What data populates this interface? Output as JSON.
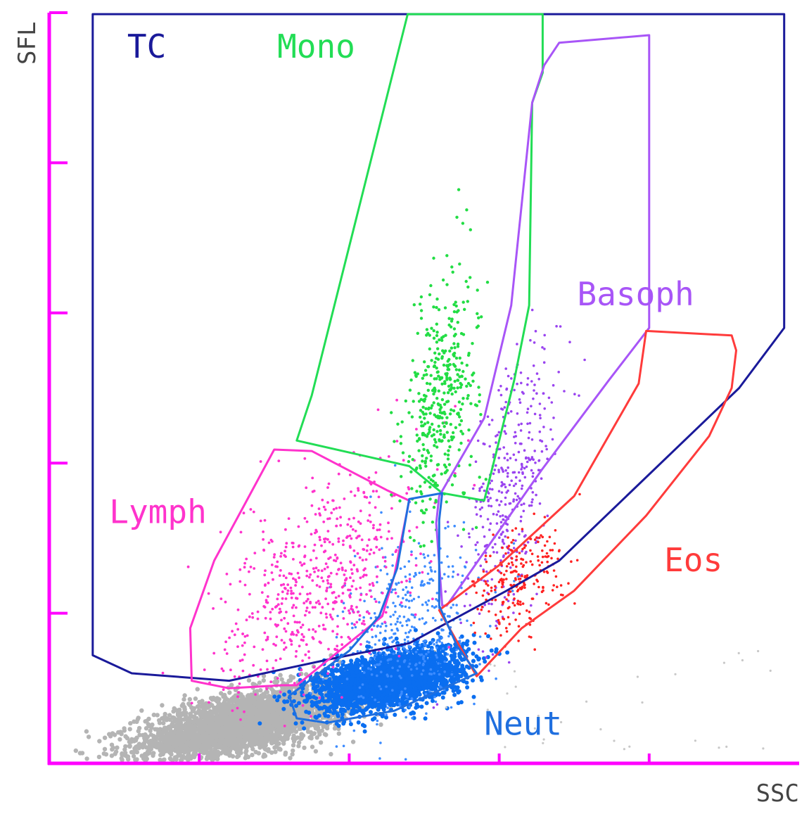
{
  "chart_data": {
    "type": "scatter",
    "xlabel": "SSC",
    "ylabel": "SFL",
    "xlim": [
      0,
      5
    ],
    "ylim": [
      0,
      5
    ],
    "x_ticks": [
      1,
      2,
      3,
      4
    ],
    "y_ticks": [
      1,
      2,
      3,
      4,
      5
    ],
    "axis_color": "#ff00ff",
    "grid": false,
    "gates": [
      {
        "name": "TC",
        "color": "#1a1a9a",
        "label_pos": [
          0.52,
          4.7
        ],
        "polygon": [
          [
            0.29,
            4.99
          ],
          [
            4.9,
            4.99
          ],
          [
            4.9,
            2.9
          ],
          [
            4.6,
            2.5
          ],
          [
            3.4,
            1.35
          ],
          [
            3.05,
            1.15
          ],
          [
            2.4,
            0.8
          ],
          [
            1.9,
            0.7
          ],
          [
            1.2,
            0.55
          ],
          [
            0.55,
            0.6
          ],
          [
            0.29,
            0.72
          ]
        ]
      },
      {
        "name": "Mono",
        "color": "#22dd55",
        "label_pos": [
          1.52,
          4.7
        ],
        "polygon": [
          [
            2.39,
            4.99
          ],
          [
            3.29,
            4.99
          ],
          [
            3.29,
            4.6
          ],
          [
            3.22,
            4.4
          ],
          [
            3.2,
            3.05
          ],
          [
            3.1,
            2.55
          ],
          [
            2.9,
            1.75
          ],
          [
            2.62,
            1.8
          ],
          [
            2.4,
            1.98
          ],
          [
            1.65,
            2.15
          ],
          [
            1.75,
            2.45
          ]
        ]
      },
      {
        "name": "Basoph",
        "color": "#a855f7",
        "label_pos": [
          3.52,
          3.05
        ],
        "polygon": [
          [
            3.4,
            4.8
          ],
          [
            4.0,
            4.85
          ],
          [
            4.0,
            2.9
          ],
          [
            3.73,
            2.55
          ],
          [
            3.28,
            1.95
          ],
          [
            2.65,
            1.05
          ],
          [
            2.62,
            1.05
          ],
          [
            2.58,
            1.6
          ],
          [
            2.6,
            1.78
          ],
          [
            2.9,
            2.3
          ],
          [
            3.08,
            3.05
          ],
          [
            3.22,
            4.4
          ],
          [
            3.3,
            4.65
          ]
        ]
      },
      {
        "name": "Eos",
        "color": "#ff3b3b",
        "label_pos": [
          4.1,
          1.28
        ],
        "polygon": [
          [
            3.98,
            2.88
          ],
          [
            4.55,
            2.85
          ],
          [
            4.58,
            2.75
          ],
          [
            4.55,
            2.5
          ],
          [
            4.4,
            2.18
          ],
          [
            3.98,
            1.65
          ],
          [
            3.5,
            1.15
          ],
          [
            3.15,
            0.9
          ],
          [
            2.85,
            0.58
          ],
          [
            2.6,
            1.02
          ],
          [
            3.0,
            1.32
          ],
          [
            3.5,
            1.78
          ],
          [
            3.93,
            2.53
          ]
        ]
      },
      {
        "name": "Lymph",
        "color": "#ff33cc",
        "label_pos": [
          0.4,
          1.6
        ],
        "polygon": [
          [
            1.5,
            2.09
          ],
          [
            1.75,
            2.08
          ],
          [
            2.25,
            1.82
          ],
          [
            2.4,
            1.75
          ],
          [
            2.3,
            1.25
          ],
          [
            2.22,
            0.98
          ],
          [
            1.65,
            0.52
          ],
          [
            1.55,
            0.52
          ],
          [
            1.2,
            0.5
          ],
          [
            0.95,
            0.55
          ],
          [
            0.94,
            0.9
          ],
          [
            1.1,
            1.35
          ],
          [
            1.3,
            1.72
          ]
        ]
      },
      {
        "name": "Neut",
        "color": "#1f6fdf",
        "label_pos": [
          2.9,
          0.19
        ],
        "polygon": [
          [
            2.4,
            1.76
          ],
          [
            2.62,
            1.8
          ],
          [
            2.6,
            1.62
          ],
          [
            2.6,
            1.05
          ],
          [
            2.72,
            0.78
          ],
          [
            2.85,
            0.6
          ],
          [
            2.3,
            0.35
          ],
          [
            1.85,
            0.27
          ],
          [
            1.65,
            0.3
          ],
          [
            1.6,
            0.45
          ],
          [
            2.0,
            0.75
          ],
          [
            2.2,
            0.98
          ],
          [
            2.32,
            1.3
          ]
        ]
      }
    ],
    "populations": [
      {
        "name": "debris",
        "color": "#b4b4b4",
        "cx": 1.3,
        "cy": 0.27,
        "sx": 0.35,
        "sy": 0.12,
        "rho": 0.6,
        "n": 3400,
        "r": 3.2
      },
      {
        "name": "Neut core",
        "color": "#0a6ef0",
        "cx": 2.27,
        "cy": 0.56,
        "sx": 0.24,
        "sy": 0.1,
        "rho": 0.45,
        "n": 2600,
        "r": 3
      },
      {
        "name": "Neut scatter",
        "color": "#3d8cff",
        "cx": 2.4,
        "cy": 0.9,
        "sx": 0.22,
        "sy": 0.32,
        "rho": 0.35,
        "n": 420,
        "r": 1.8
      },
      {
        "name": "Lymph",
        "color": "#ff33cc",
        "cx": 1.8,
        "cy": 1.2,
        "sx": 0.32,
        "sy": 0.38,
        "rho": 0.5,
        "n": 600,
        "r": 1.9
      },
      {
        "name": "Mono",
        "color": "#22dd44",
        "cx": 2.62,
        "cy": 2.45,
        "sx": 0.12,
        "sy": 0.42,
        "rho": 0.4,
        "n": 420,
        "r": 2.2
      },
      {
        "name": "Basoph",
        "color": "#9a44f0",
        "cx": 3.08,
        "cy": 1.85,
        "sx": 0.16,
        "sy": 0.48,
        "rho": 0.55,
        "n": 380,
        "r": 1.8
      },
      {
        "name": "Eos",
        "color": "#ff2222",
        "cx": 3.12,
        "cy": 1.22,
        "sx": 0.15,
        "sy": 0.18,
        "rho": 0.3,
        "n": 230,
        "r": 1.8
      }
    ]
  }
}
